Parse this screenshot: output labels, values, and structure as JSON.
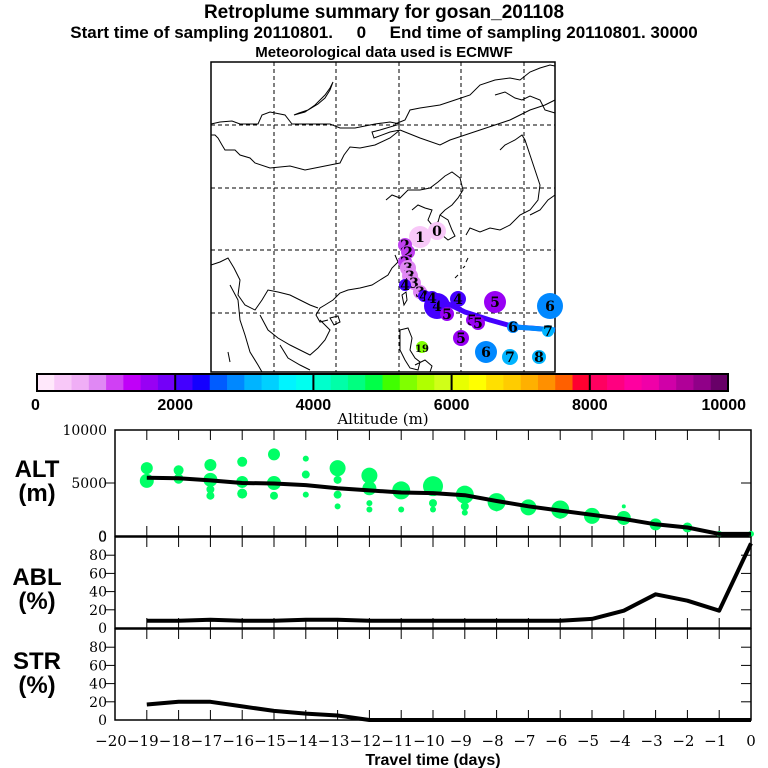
{
  "header": {
    "title": "Retroplume summary for gosan_201108",
    "subtitle": "Start time of sampling 20110801.     0     End time of sampling 20110801. 30000",
    "met_line": "Meteorological data used is ECMWF"
  },
  "colorbar": {
    "label": "Altitude (m)",
    "ticks": [
      "0",
      "2000",
      "4000",
      "6000",
      "8000",
      "10000"
    ],
    "range": [
      0,
      10000
    ],
    "colors": [
      "#ffe8fb",
      "#f8c8f8",
      "#f0aef6",
      "#e088f4",
      "#d040f4",
      "#c000f8",
      "#9800f4",
      "#7400f8",
      "#4400ff",
      "#1400ff",
      "#005cff",
      "#0088ff",
      "#00b4ff",
      "#00d0ff",
      "#00f4ff",
      "#00fff0",
      "#00ffcc",
      "#00ffa8",
      "#00ff80",
      "#00ff48",
      "#40ff00",
      "#80ff00",
      "#b0ff00",
      "#d0ff18",
      "#e8ff00",
      "#ffff00",
      "#ffe000",
      "#ffcc00",
      "#ffb000",
      "#ff9000",
      "#ff6000",
      "#ff0030",
      "#ff0060",
      "#ff0080",
      "#ff00a0",
      "#f000a8",
      "#d000a8",
      "#b00098",
      "#900088",
      "#680068"
    ]
  },
  "map": {
    "plume_labels": [
      {
        "label": "0",
        "color": "#f8c8f8"
      },
      {
        "label": "1",
        "color": "#f8c8f8"
      },
      {
        "label": "2",
        "color": "#c040f0"
      },
      {
        "label": "3",
        "color": "#e088f4"
      },
      {
        "label": "4",
        "color": "#4400ff"
      },
      {
        "label": "5",
        "color": "#9800f4"
      },
      {
        "label": "6",
        "color": "#0088ff"
      },
      {
        "label": "7",
        "color": "#00b4ff"
      },
      {
        "label": "8",
        "color": "#00b4ff"
      },
      {
        "label": "19",
        "color": "#80ff00"
      }
    ]
  },
  "panels": {
    "alt": {
      "label_line1": "ALT",
      "label_line2": "(m)",
      "yticks": [
        "10000",
        "5000",
        "0"
      ]
    },
    "abl": {
      "label_line1": "ABL",
      "label_line2": "(%)",
      "yticks": [
        "0",
        "80",
        "60",
        "40",
        "20",
        "0"
      ]
    },
    "str": {
      "label_line1": "STR",
      "label_line2": "(%)",
      "yticks": [
        "80",
        "60",
        "40",
        "20",
        "0"
      ]
    }
  },
  "chart_data": [
    {
      "type": "line",
      "title": "ALT (m)",
      "xlabel": "Travel time (days)",
      "ylabel": "ALT (m)",
      "xlim": [
        -20,
        0
      ],
      "ylim": [
        0,
        10000
      ],
      "x": [
        -19,
        -18,
        -17,
        -16,
        -15,
        -14,
        -13,
        -12,
        -11,
        -10,
        -9,
        -8,
        -7,
        -6,
        -5,
        -4,
        -3,
        -2,
        -1,
        0
      ],
      "series": [
        {
          "name": "mean altitude",
          "values": [
            5500,
            5450,
            5250,
            5000,
            4950,
            4800,
            4500,
            4300,
            4100,
            4050,
            3850,
            3300,
            2800,
            2400,
            2000,
            1600,
            1100,
            800,
            200,
            200
          ]
        }
      ],
      "scatter": {
        "name": "plume clusters",
        "color": "#00ff66",
        "points": [
          {
            "x": -19,
            "y": 6400
          },
          {
            "x": -19,
            "y": 5200
          },
          {
            "x": -18,
            "y": 6200
          },
          {
            "x": -18,
            "y": 5400
          },
          {
            "x": -17,
            "y": 6700
          },
          {
            "x": -17,
            "y": 5300
          },
          {
            "x": -17,
            "y": 4400
          },
          {
            "x": -17,
            "y": 3800
          },
          {
            "x": -16,
            "y": 7000
          },
          {
            "x": -16,
            "y": 5100
          },
          {
            "x": -16,
            "y": 4000
          },
          {
            "x": -15,
            "y": 7700
          },
          {
            "x": -15,
            "y": 5000
          },
          {
            "x": -15,
            "y": 3800
          },
          {
            "x": -14,
            "y": 7300
          },
          {
            "x": -14,
            "y": 5800
          },
          {
            "x": -14,
            "y": 3900
          },
          {
            "x": -13,
            "y": 6400
          },
          {
            "x": -13,
            "y": 5300
          },
          {
            "x": -13,
            "y": 3900
          },
          {
            "x": -13,
            "y": 2800
          },
          {
            "x": -12,
            "y": 5700
          },
          {
            "x": -12,
            "y": 4500
          },
          {
            "x": -12,
            "y": 3100
          },
          {
            "x": -12,
            "y": 2500
          },
          {
            "x": -11,
            "y": 4300
          },
          {
            "x": -11,
            "y": 2500
          },
          {
            "x": -10,
            "y": 4700
          },
          {
            "x": -10,
            "y": 3100
          },
          {
            "x": -10,
            "y": 2500
          },
          {
            "x": -9,
            "y": 3900
          },
          {
            "x": -9,
            "y": 2800
          },
          {
            "x": -9,
            "y": 2200
          },
          {
            "x": -8,
            "y": 3200
          },
          {
            "x": -8,
            "y": 2600
          },
          {
            "x": -7,
            "y": 2700
          },
          {
            "x": -7,
            "y": 2300
          },
          {
            "x": -6,
            "y": 2500
          },
          {
            "x": -6,
            "y": 1900
          },
          {
            "x": -5,
            "y": 1900
          },
          {
            "x": -5,
            "y": 1600
          },
          {
            "x": -4,
            "y": 1700
          },
          {
            "x": -4,
            "y": 2800
          },
          {
            "x": -3,
            "y": 1100
          },
          {
            "x": -2,
            "y": 800
          },
          {
            "x": -1,
            "y": 200
          },
          {
            "x": 0,
            "y": 200
          }
        ]
      }
    },
    {
      "type": "line",
      "title": "ABL (%)",
      "xlabel": "Travel time (days)",
      "ylabel": "ABL (%)",
      "xlim": [
        -20,
        0
      ],
      "ylim": [
        0,
        100
      ],
      "x": [
        -19,
        -18,
        -17,
        -16,
        -15,
        -14,
        -13,
        -12,
        -11,
        -10,
        -9,
        -8,
        -7,
        -6,
        -5,
        -4,
        -3,
        -2,
        -1,
        0
      ],
      "series": [
        {
          "name": "ABL fraction",
          "values": [
            8,
            8,
            9,
            8,
            8,
            9,
            9,
            8,
            8,
            8,
            8,
            8,
            8,
            8,
            10,
            19,
            37,
            30,
            19,
            93
          ]
        }
      ]
    },
    {
      "type": "line",
      "title": "STR (%)",
      "xlabel": "Travel time (days)",
      "ylabel": "STR (%)",
      "xlim": [
        -20,
        0
      ],
      "ylim": [
        0,
        100
      ],
      "x": [
        -19,
        -18,
        -17,
        -16,
        -15,
        -14,
        -13,
        -12,
        -11,
        -10,
        -9,
        -8,
        -7,
        -6,
        -5,
        -4,
        -3,
        -2,
        -1,
        0
      ],
      "series": [
        {
          "name": "STR fraction",
          "values": [
            17,
            20,
            20,
            15,
            10,
            7,
            5,
            0,
            0,
            0,
            0,
            0,
            0,
            0,
            0,
            0,
            0,
            0,
            0,
            0
          ]
        }
      ],
      "xticks": [
        "-20",
        "-19",
        "-18",
        "-17",
        "-16",
        "-15",
        "-14",
        "-13",
        "-12",
        "-11",
        "-10",
        "-9",
        "-8",
        "-7",
        "-6",
        "-5",
        "-4",
        "-3",
        "-2",
        "-1",
        "0"
      ]
    }
  ]
}
